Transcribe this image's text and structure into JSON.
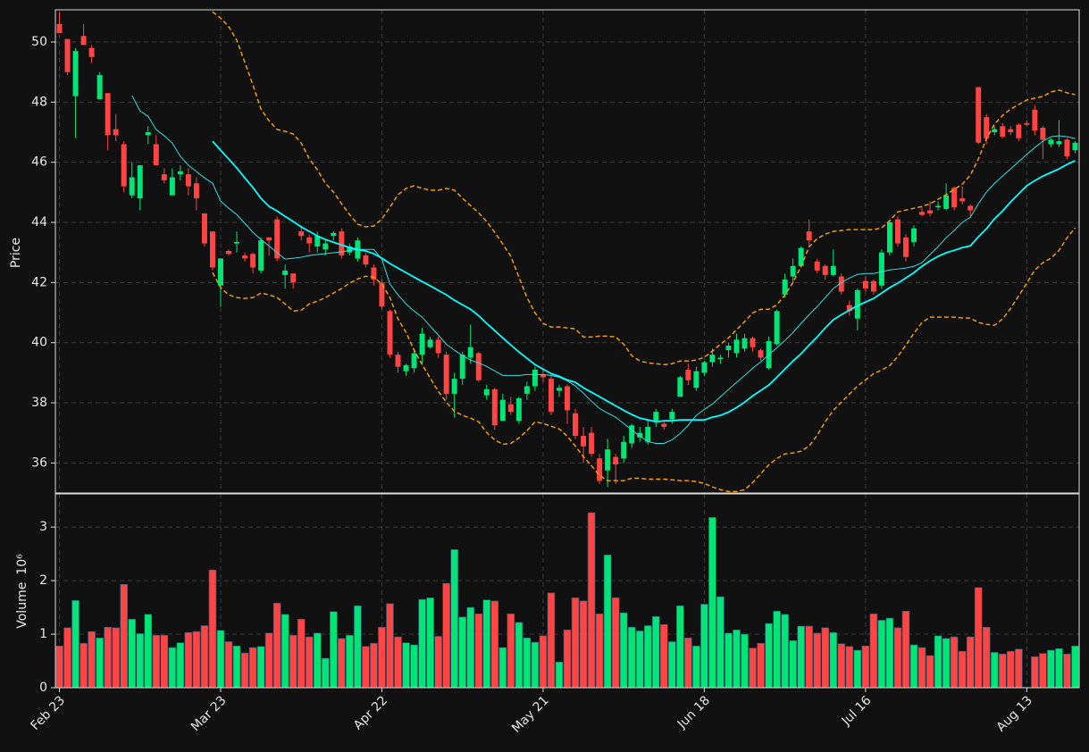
{
  "chart_data": {
    "type": "candlestick",
    "ylabel": "Price",
    "volume_ylabel": "Volume",
    "volume_scale": "10⁶",
    "up_color": "#00e676",
    "down_color": "#ff4444",
    "grid": true,
    "categories": [
      "Feb 23",
      null,
      null,
      null,
      null,
      null,
      null,
      null,
      null,
      null,
      null,
      null,
      null,
      null,
      null,
      null,
      null,
      null,
      null,
      null,
      "Mar 23",
      null,
      null,
      null,
      null,
      null,
      null,
      null,
      null,
      null,
      null,
      null,
      null,
      null,
      null,
      null,
      null,
      null,
      null,
      null,
      "Apr 22",
      null,
      null,
      null,
      null,
      null,
      null,
      null,
      null,
      null,
      null,
      null,
      null,
      null,
      null,
      null,
      null,
      null,
      null,
      null,
      "May 21",
      null,
      null,
      null,
      null,
      null,
      null,
      null,
      null,
      null,
      null,
      null,
      null,
      null,
      null,
      null,
      null,
      null,
      null,
      null,
      "Jun 18",
      null,
      null,
      null,
      null,
      null,
      null,
      null,
      null,
      null,
      null,
      null,
      null,
      null,
      null,
      null,
      null,
      null,
      null,
      null,
      "Jul 16",
      null,
      null,
      null,
      null,
      null,
      null,
      null,
      null,
      null,
      null,
      null,
      null,
      null,
      null,
      null,
      null,
      null,
      null,
      null,
      "Aug 13",
      null,
      null,
      null,
      null,
      null,
      null
    ],
    "xlim": [
      -0.5,
      126.5
    ],
    "ylim": [
      35,
      51.07
    ],
    "yticks": [
      36,
      38,
      40,
      42,
      44,
      46,
      48,
      50
    ],
    "volume_ylim": [
      0,
      3.62
    ],
    "volume_yticks": [
      0,
      1,
      2,
      3
    ],
    "open": [
      50.6,
      50.1,
      48.2,
      50.2,
      49.8,
      48.1,
      48.3,
      47.1,
      46.6,
      44.9,
      44.8,
      46.9,
      46.6,
      45.6,
      44.9,
      45.6,
      45.6,
      45.3,
      44.3,
      43.7,
      41.9,
      43.05,
      43.3,
      42.9,
      42.95,
      42.4,
      43.5,
      44.1,
      42.25,
      42.3,
      43.7,
      43.5,
      43.2,
      43.1,
      43.55,
      43.7,
      43.0,
      42.8,
      42.9,
      42.5,
      42.0,
      41.05,
      39.6,
      39.05,
      39.15,
      39.6,
      39.85,
      40.1,
      39.6,
      38.3,
      38.8,
      39.5,
      39.65,
      38.25,
      38.45,
      37.4,
      37.95,
      37.4,
      38.3,
      38.55,
      38.95,
      38.8,
      38.4,
      38.55,
      37.65,
      36.9,
      37.0,
      36.15,
      35.75,
      36.2,
      36.15,
      36.65,
      36.85,
      36.7,
      37.4,
      37.3,
      37.45,
      38.2,
      39.1,
      38.5,
      39.0,
      39.35,
      39.45,
      39.75,
      39.65,
      39.8,
      40.15,
      39.75,
      39.15,
      39.95,
      41.6,
      42.2,
      42.55,
      43.7,
      42.7,
      42.55,
      42.25,
      42.2,
      41.25,
      40.8,
      42.05,
      42.05,
      41.9,
      43.0,
      44.1,
      43.5,
      43.35,
      44.35,
      44.4,
      44.5,
      44.45,
      45.15,
      44.8,
      44.55,
      48.5,
      47.5,
      47.0,
      47.2,
      47.1,
      47.25,
      47.3,
      47.75,
      47.15,
      46.6,
      46.6,
      46.75,
      46.4
    ],
    "high": [
      51.0,
      50.1,
      49.8,
      50.6,
      49.9,
      49.0,
      48.3,
      47.6,
      46.7,
      46.0,
      45.9,
      47.2,
      46.9,
      45.8,
      45.8,
      45.9,
      45.8,
      45.5,
      44.3,
      43.7,
      42.8,
      43.1,
      43.7,
      43.0,
      43.0,
      43.5,
      43.5,
      44.2,
      42.6,
      42.3,
      43.9,
      43.6,
      43.7,
      43.4,
      43.7,
      43.8,
      43.3,
      43.5,
      43.0,
      42.6,
      42.1,
      41.1,
      39.7,
      39.3,
      39.8,
      40.5,
      40.2,
      40.2,
      39.7,
      39.0,
      39.7,
      40.6,
      39.7,
      38.6,
      38.5,
      38.3,
      38.2,
      38.2,
      38.7,
      39.2,
      39.1,
      38.9,
      38.6,
      38.6,
      37.8,
      37.2,
      37.2,
      36.3,
      36.8,
      36.3,
      36.9,
      37.3,
      37.2,
      37.4,
      37.8,
      37.4,
      37.8,
      38.9,
      39.3,
      39.2,
      39.4,
      39.8,
      39.6,
      40.0,
      40.3,
      40.3,
      40.2,
      39.8,
      40.2,
      41.1,
      42.3,
      42.8,
      43.2,
      44.1,
      42.8,
      42.6,
      43.1,
      42.3,
      41.4,
      41.8,
      42.2,
      42.1,
      43.1,
      44.1,
      44.2,
      43.6,
      43.9,
      44.5,
      44.7,
      44.7,
      45.3,
      45.2,
      45.2,
      44.6,
      48.5,
      47.6,
      47.2,
      47.3,
      47.2,
      47.3,
      47.4,
      47.9,
      47.2,
      46.8,
      47.4,
      46.8,
      46.7
    ],
    "low": [
      50.3,
      48.9,
      46.8,
      49.9,
      49.3,
      48.1,
      46.4,
      46.7,
      45.0,
      44.8,
      44.4,
      46.6,
      45.9,
      45.3,
      44.9,
      45.4,
      44.9,
      44.4,
      43.2,
      42.4,
      41.2,
      42.9,
      43.0,
      42.7,
      42.3,
      42.3,
      42.9,
      42.7,
      41.8,
      41.8,
      43.4,
      43.0,
      43.0,
      42.9,
      43.4,
      42.8,
      42.9,
      42.7,
      42.5,
      41.9,
      41.1,
      39.5,
      39.0,
      38.9,
      39.0,
      39.3,
      39.8,
      39.5,
      38.1,
      37.5,
      38.6,
      39.3,
      38.7,
      38.1,
      37.1,
      37.4,
      37.6,
      37.3,
      38.1,
      38.4,
      38.7,
      37.6,
      38.2,
      37.3,
      36.8,
      36.0,
      36.2,
      35.3,
      35.2,
      35.3,
      36.0,
      36.5,
      36.7,
      36.6,
      37.2,
      37.1,
      37.3,
      38.2,
      38.6,
      38.4,
      38.9,
      39.2,
      39.3,
      39.5,
      39.5,
      39.7,
      39.7,
      39.4,
      39.1,
      39.9,
      41.5,
      42.0,
      42.5,
      43.2,
      42.3,
      42.1,
      42.2,
      41.6,
      40.9,
      40.4,
      41.7,
      41.6,
      41.8,
      42.9,
      43.2,
      42.7,
      43.2,
      44.2,
      44.2,
      44.4,
      44.4,
      44.4,
      44.6,
      44.2,
      46.6,
      46.6,
      46.9,
      46.8,
      46.9,
      46.7,
      47.2,
      46.9,
      46.1,
      46.5,
      46.5,
      46.1,
      46.3
    ],
    "close": [
      50.3,
      49.0,
      49.7,
      49.9,
      49.5,
      48.9,
      46.9,
      46.9,
      45.2,
      45.5,
      45.9,
      47.0,
      45.9,
      45.4,
      45.5,
      45.7,
      45.2,
      44.8,
      43.3,
      42.5,
      42.8,
      42.95,
      43.35,
      42.8,
      42.5,
      43.4,
      43.4,
      42.8,
      42.4,
      42.0,
      43.55,
      43.3,
      43.55,
      43.3,
      43.65,
      42.9,
      43.2,
      43.4,
      42.6,
      42.1,
      41.2,
      39.6,
      39.2,
      39.25,
      39.65,
      40.3,
      40.1,
      39.65,
      38.3,
      38.8,
      39.6,
      39.85,
      38.75,
      38.45,
      37.25,
      38.1,
      37.7,
      38.15,
      38.55,
      39.1,
      38.85,
      37.7,
      38.5,
      37.75,
      36.9,
      36.55,
      36.3,
      35.4,
      36.45,
      35.95,
      36.7,
      37.25,
      37.0,
      37.2,
      37.7,
      37.2,
      37.7,
      38.85,
      38.75,
      39.05,
      39.35,
      39.6,
      39.5,
      39.9,
      40.1,
      40.15,
      39.85,
      39.5,
      40.05,
      41.05,
      42.1,
      42.55,
      43.15,
      43.4,
      42.4,
      42.25,
      42.55,
      41.7,
      41.05,
      41.75,
      41.8,
      41.7,
      43.0,
      44.0,
      43.3,
      42.85,
      43.8,
      44.25,
      44.3,
      44.55,
      44.9,
      44.5,
      44.7,
      44.4,
      46.65,
      46.8,
      47.1,
      46.85,
      47.0,
      46.8,
      47.25,
      47.05,
      46.75,
      46.75,
      46.7,
      46.2,
      46.65
    ],
    "volume": [
      0.78,
      1.12,
      1.63,
      0.83,
      1.05,
      0.93,
      1.13,
      1.12,
      1.93,
      1.28,
      1.01,
      1.37,
      0.98,
      0.98,
      0.75,
      0.84,
      1.03,
      1.05,
      1.16,
      2.2,
      1.07,
      0.86,
      0.78,
      0.65,
      0.75,
      0.77,
      1.02,
      1.58,
      1.37,
      0.98,
      1.28,
      0.95,
      1.02,
      0.55,
      1.42,
      0.92,
      0.98,
      1.53,
      0.77,
      0.83,
      1.13,
      1.57,
      0.95,
      0.84,
      0.8,
      1.65,
      1.68,
      0.96,
      1.95,
      2.58,
      1.32,
      1.5,
      1.38,
      1.64,
      1.62,
      0.75,
      1.38,
      1.22,
      0.93,
      0.85,
      0.97,
      1.77,
      0.48,
      1.08,
      1.68,
      1.62,
      3.27,
      1.38,
      2.48,
      1.68,
      1.4,
      1.13,
      1.06,
      1.16,
      1.33,
      1.18,
      0.86,
      1.53,
      0.93,
      0.78,
      1.56,
      3.18,
      1.7,
      1.02,
      1.08,
      1.0,
      0.74,
      0.83,
      1.2,
      1.43,
      1.37,
      0.88,
      1.15,
      1.15,
      1.02,
      1.12,
      1.03,
      0.82,
      0.77,
      0.7,
      0.78,
      1.38,
      1.26,
      1.3,
      1.12,
      1.43,
      0.8,
      0.75,
      0.6,
      0.97,
      0.92,
      0.95,
      0.68,
      0.95,
      1.87,
      1.13,
      0.66,
      0.63,
      0.68,
      0.72,
      0,
      0.58,
      0.64,
      0.7,
      0.73,
      0.63,
      0.78
    ],
    "lines": [
      {
        "color": "#33e0e0",
        "linewidth": 1,
        "dashed": false,
        "values": [
          null,
          null,
          null,
          null,
          null,
          null,
          null,
          null,
          null,
          48.22,
          47.71,
          47.53,
          47.09,
          46.88,
          46.64,
          46.2,
          45.9,
          45.69,
          45.48,
          45.3,
          44.71,
          44.47,
          44.26,
          43.97,
          43.67,
          43.43,
          43.22,
          42.99,
          42.78,
          42.81,
          42.84,
          42.9,
          42.93,
          42.96,
          42.99,
          43.02,
          43.07,
          43.1,
          43.1,
          43.1,
          42.78,
          41.95,
          41.59,
          41.29,
          41.05,
          40.85,
          40.55,
          40.25,
          39.95,
          39.75,
          39.57,
          39.42,
          39.33,
          39.21,
          39.06,
          38.91,
          38.91,
          38.91,
          38.94,
          38.94,
          38.94,
          38.91,
          38.85,
          38.73,
          38.56,
          38.32,
          38.05,
          37.81,
          37.66,
          37.52,
          37.31,
          37.1,
          36.89,
          36.71,
          36.65,
          36.65,
          36.77,
          36.98,
          37.25,
          37.58,
          37.78,
          37.96,
          38.2,
          38.44,
          38.68,
          38.91,
          39.15,
          39.36,
          39.6,
          39.83,
          40.07,
          40.34,
          40.64,
          40.93,
          41.2,
          41.5,
          41.8,
          42.0,
          42.15,
          42.27,
          42.3,
          42.3,
          42.36,
          42.42,
          42.45,
          42.48,
          42.54,
          42.66,
          42.93,
          43.19,
          43.49,
          43.73,
          44.0,
          44.17,
          44.62,
          45.01,
          45.3,
          45.54,
          45.78,
          46.02,
          46.26,
          46.49,
          46.7,
          46.85,
          46.88,
          46.85,
          46.79
        ]
      },
      {
        "color": "#00ffff",
        "linewidth": 1.8,
        "dashed": false,
        "values": [
          null,
          null,
          null,
          null,
          null,
          null,
          null,
          null,
          null,
          null,
          null,
          null,
          null,
          null,
          null,
          null,
          null,
          null,
          null,
          46.7,
          46.4,
          46.11,
          45.81,
          45.48,
          45.16,
          44.8,
          44.53,
          44.38,
          44.2,
          44.03,
          43.85,
          43.7,
          43.55,
          43.43,
          43.34,
          43.25,
          43.16,
          43.1,
          43.05,
          42.96,
          42.81,
          42.63,
          42.48,
          42.33,
          42.18,
          42.03,
          41.89,
          41.74,
          41.59,
          41.41,
          41.26,
          41.11,
          40.9,
          40.64,
          40.4,
          40.16,
          39.92,
          39.69,
          39.48,
          39.27,
          39.12,
          38.97,
          38.88,
          38.76,
          38.68,
          38.5,
          38.35,
          38.2,
          38.05,
          37.9,
          37.75,
          37.61,
          37.49,
          37.43,
          37.37,
          37.4,
          37.4,
          37.43,
          37.43,
          37.43,
          37.43,
          37.52,
          37.58,
          37.69,
          37.84,
          38.02,
          38.23,
          38.41,
          38.59,
          38.85,
          39.12,
          39.39,
          39.63,
          39.92,
          40.19,
          40.49,
          40.76,
          40.93,
          41.08,
          41.23,
          41.35,
          41.47,
          41.65,
          41.83,
          41.98,
          42.15,
          42.33,
          42.54,
          42.72,
          42.87,
          42.99,
          43.07,
          43.16,
          43.22,
          43.52,
          43.79,
          44.12,
          44.38,
          44.68,
          44.95,
          45.22,
          45.39,
          45.54,
          45.66,
          45.78,
          45.93,
          46.05
        ]
      },
      {
        "color": "#ffa500",
        "linewidth": 1.4,
        "dashed": true,
        "values": [
          null,
          null,
          null,
          null,
          null,
          null,
          null,
          null,
          null,
          null,
          null,
          null,
          null,
          null,
          null,
          null,
          null,
          null,
          null,
          51.0,
          50.8,
          50.51,
          50.06,
          49.32,
          48.57,
          47.77,
          47.38,
          47.09,
          47.03,
          46.94,
          46.64,
          46.11,
          45.75,
          45.3,
          45.01,
          44.62,
          44.26,
          43.94,
          43.85,
          43.88,
          44.12,
          44.5,
          44.92,
          45.13,
          45.22,
          45.13,
          45.07,
          45.07,
          45.13,
          45.07,
          44.8,
          44.56,
          44.32,
          44.03,
          43.67,
          43.28,
          42.87,
          42.18,
          41.5,
          40.99,
          40.64,
          40.52,
          40.52,
          40.49,
          40.46,
          40.19,
          40.19,
          40.22,
          40.22,
          40.19,
          39.95,
          39.57,
          39.39,
          39.33,
          39.3,
          39.27,
          39.3,
          39.39,
          39.39,
          39.42,
          39.51,
          39.72,
          39.95,
          40.16,
          40.43,
          40.7,
          40.99,
          41.11,
          41.11,
          41.26,
          41.59,
          42.0,
          42.54,
          43.19,
          43.46,
          43.61,
          43.7,
          43.73,
          43.76,
          43.76,
          43.76,
          43.76,
          43.82,
          44.06,
          44.35,
          44.41,
          44.47,
          44.53,
          44.62,
          44.77,
          44.92,
          45.1,
          45.27,
          45.57,
          46.11,
          46.79,
          47.27,
          47.56,
          47.77,
          47.92,
          48.07,
          48.13,
          48.19,
          48.34,
          48.4,
          48.31,
          48.25
        ]
      },
      {
        "color": "#ffa500",
        "linewidth": 1.4,
        "dashed": true,
        "values": [
          null,
          null,
          null,
          null,
          null,
          null,
          null,
          null,
          null,
          null,
          null,
          null,
          null,
          null,
          null,
          null,
          null,
          null,
          null,
          42.33,
          41.83,
          41.59,
          41.5,
          41.47,
          41.5,
          41.65,
          41.59,
          41.5,
          41.29,
          41.05,
          41.08,
          41.29,
          41.38,
          41.5,
          41.65,
          41.8,
          41.98,
          42.12,
          42.21,
          42.18,
          41.95,
          41.5,
          40.79,
          40.34,
          39.75,
          39.27,
          38.82,
          38.38,
          38.02,
          37.72,
          37.58,
          37.49,
          37.37,
          37.01,
          36.77,
          36.62,
          36.65,
          36.83,
          37.07,
          37.37,
          37.31,
          37.22,
          37.13,
          36.89,
          36.56,
          36.21,
          35.91,
          35.58,
          35.41,
          35.41,
          35.41,
          35.49,
          35.49,
          35.46,
          35.46,
          35.46,
          35.44,
          35.41,
          35.41,
          35.38,
          35.32,
          35.2,
          35.11,
          35.05,
          35.05,
          35.11,
          35.35,
          35.64,
          35.94,
          36.15,
          36.3,
          36.33,
          36.39,
          36.56,
          36.92,
          37.37,
          37.75,
          38.02,
          38.29,
          38.56,
          38.76,
          38.97,
          39.09,
          39.24,
          39.54,
          39.92,
          40.31,
          40.67,
          40.85,
          40.85,
          40.85,
          40.85,
          40.82,
          40.82,
          40.67,
          40.61,
          40.58,
          40.79,
          41.14,
          41.56,
          41.98,
          42.42,
          42.66,
          42.81,
          43.07,
          43.49,
          43.82
        ]
      }
    ]
  }
}
